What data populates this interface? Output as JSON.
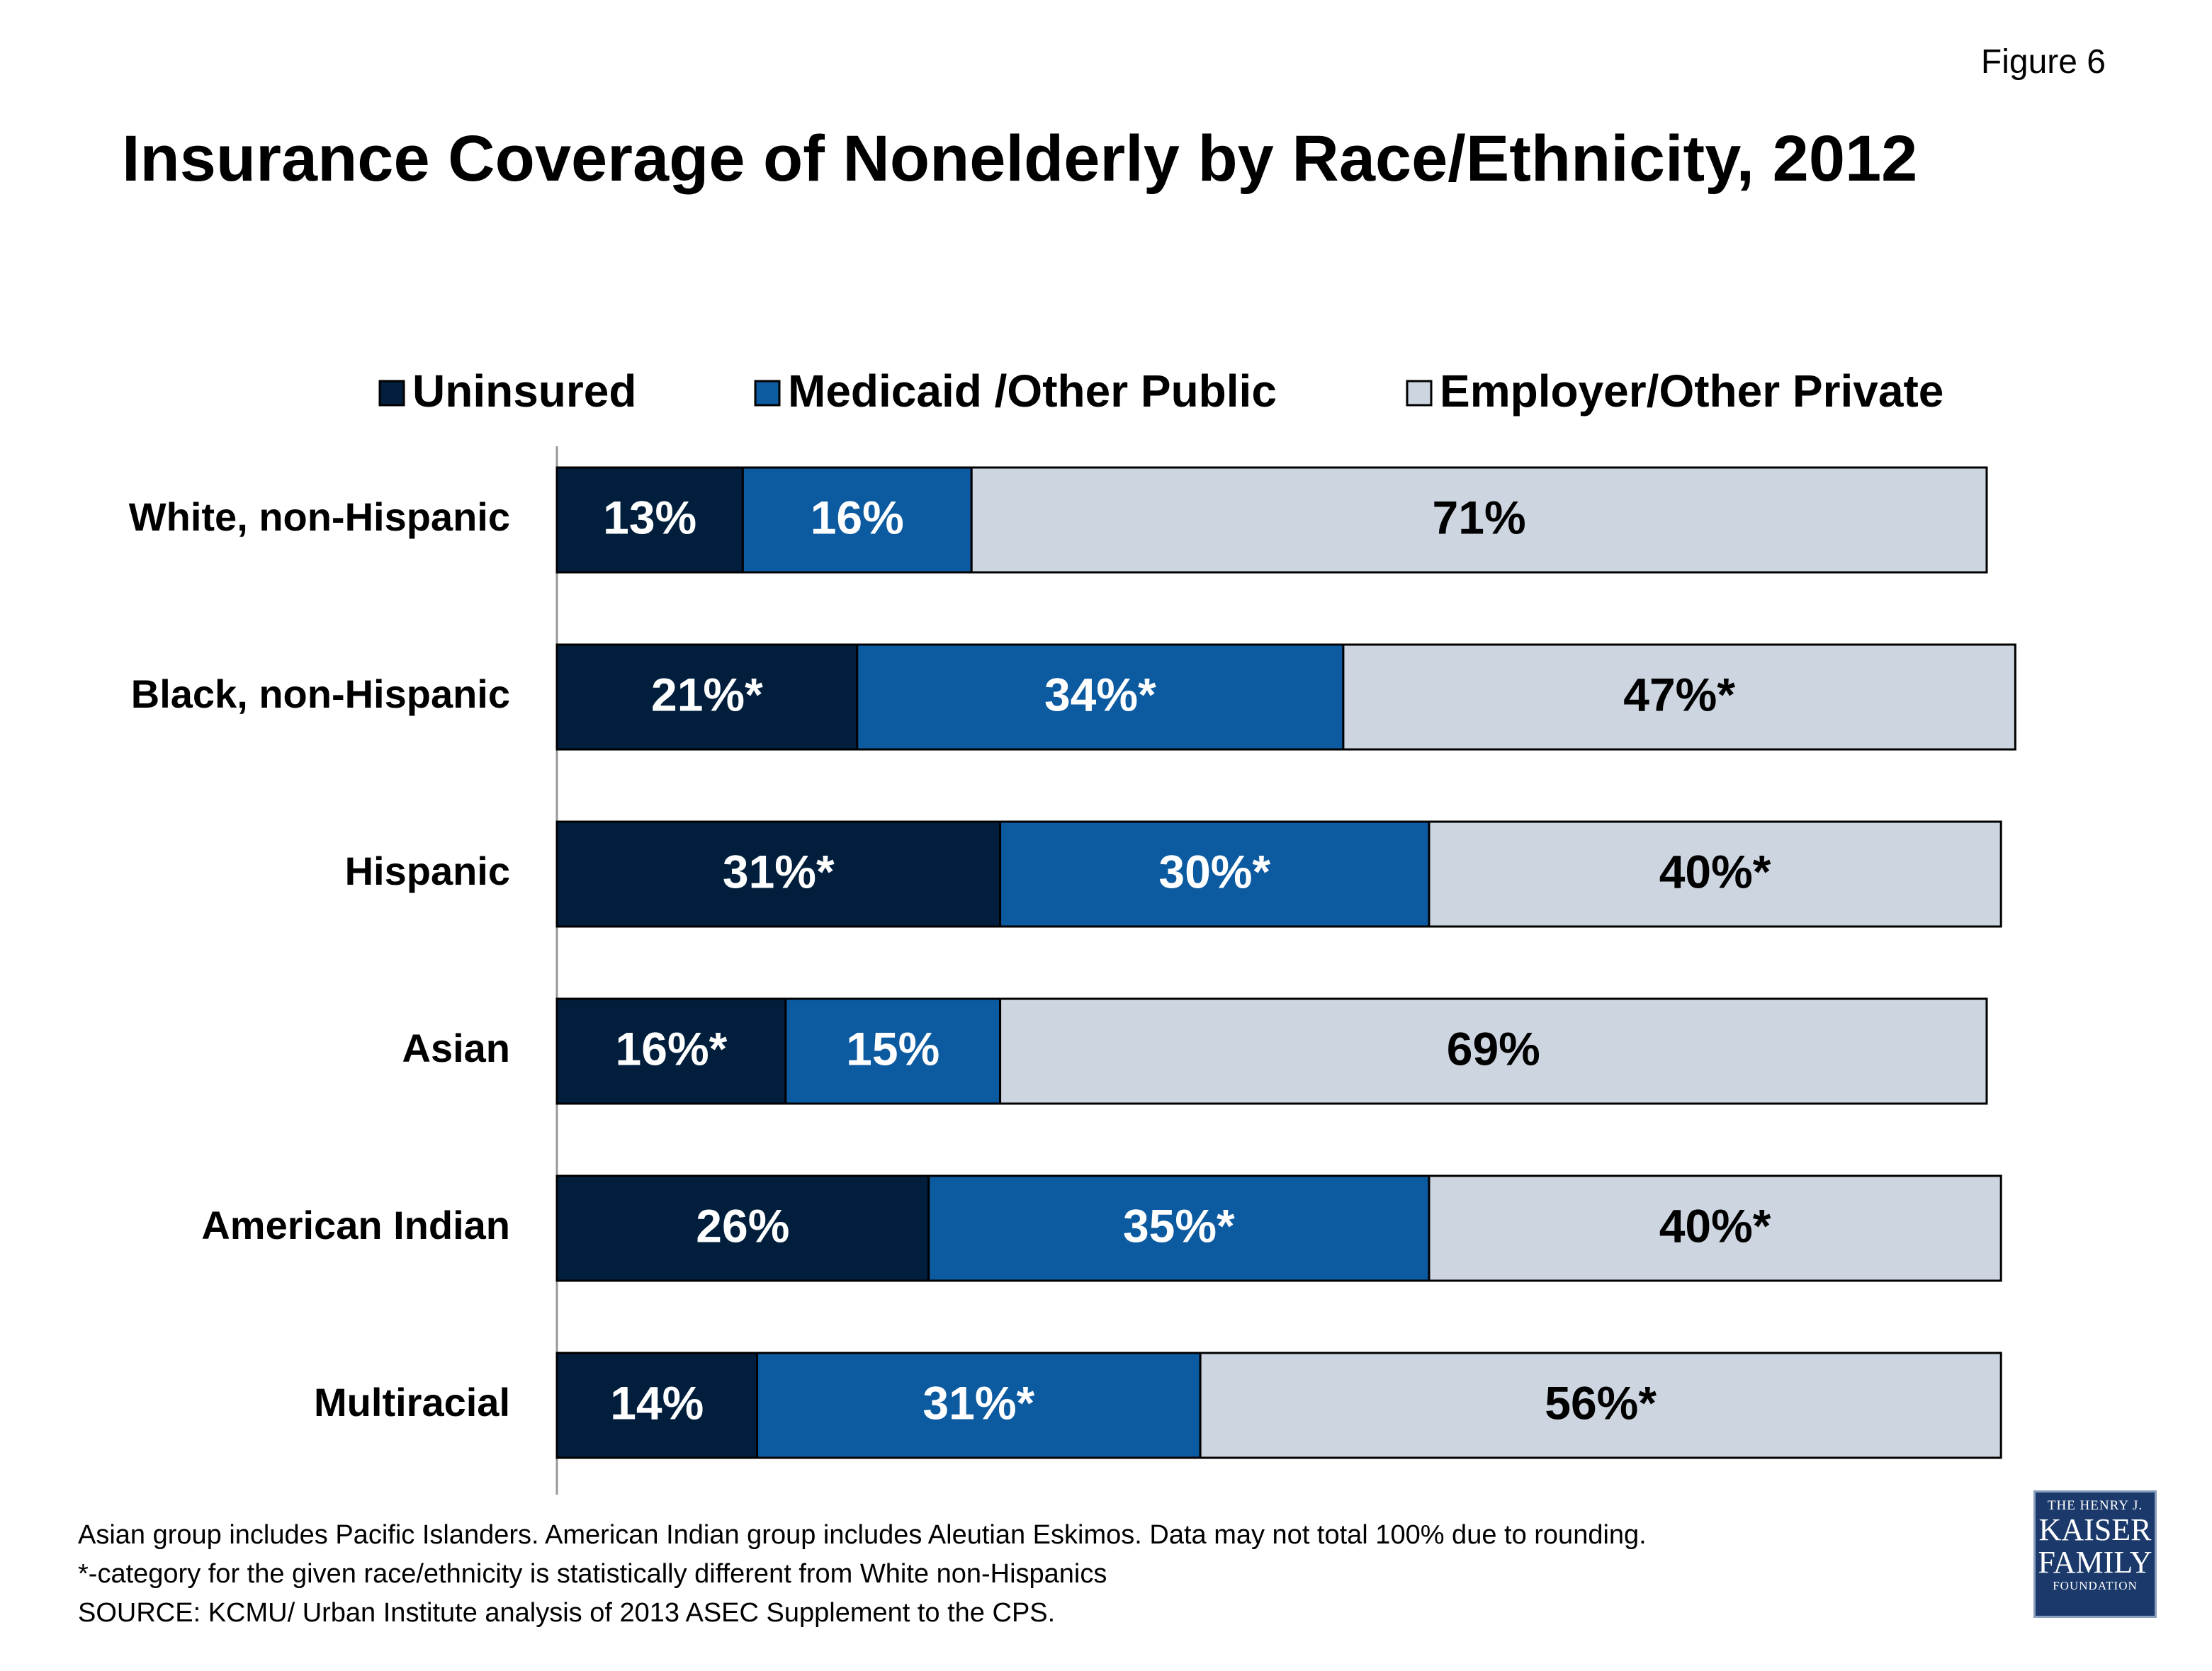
{
  "figure_label": "Figure 6",
  "chart_data": {
    "type": "stacked-bar-horizontal",
    "title": "Insurance Coverage of Nonelderly by Race/Ethnicity, 2012",
    "categories": [
      "White, non-Hispanic",
      "Black, non-Hispanic",
      "Hispanic",
      "Asian",
      "American Indian",
      "Multiracial"
    ],
    "xlim": [
      0,
      100
    ],
    "series": [
      {
        "name": "Uninsured",
        "color": "#011e3c",
        "label_color": "#ffffff",
        "values": [
          13,
          21,
          31,
          16,
          26,
          14
        ],
        "value_labels": [
          "13%",
          "21%*",
          "31%*",
          "16%*",
          "26%",
          "14%"
        ]
      },
      {
        "name": "Medicaid /Other Public",
        "color": "#0c5aa0",
        "label_color": "#ffffff",
        "values": [
          16,
          34,
          30,
          15,
          35,
          31
        ],
        "value_labels": [
          "16%",
          "34%*",
          "30%*",
          "15%",
          "35%*",
          "31%*"
        ]
      },
      {
        "name": "Employer/Other Private",
        "color": "#cdd6e0",
        "label_color": "#000000",
        "values": [
          71,
          47,
          40,
          69,
          40,
          56
        ],
        "value_labels": [
          "71%",
          "47%*",
          "40%*",
          "69%",
          "40%*",
          "56%*"
        ]
      }
    ]
  },
  "notes": [
    "Asian group includes Pacific Islanders. American Indian group includes Aleutian Eskimos. Data may not total 100% due to rounding.",
    "*-category for the given race/ethnicity is statistically different from White non-Hispanics",
    "SOURCE: KCMU/ Urban Institute analysis of 2013 ASEC Supplement to the CPS."
  ],
  "logo": {
    "line1": "THE HENRY J.",
    "line2": "KAISER",
    "line3": "FAMILY",
    "line4": "FOUNDATION"
  }
}
